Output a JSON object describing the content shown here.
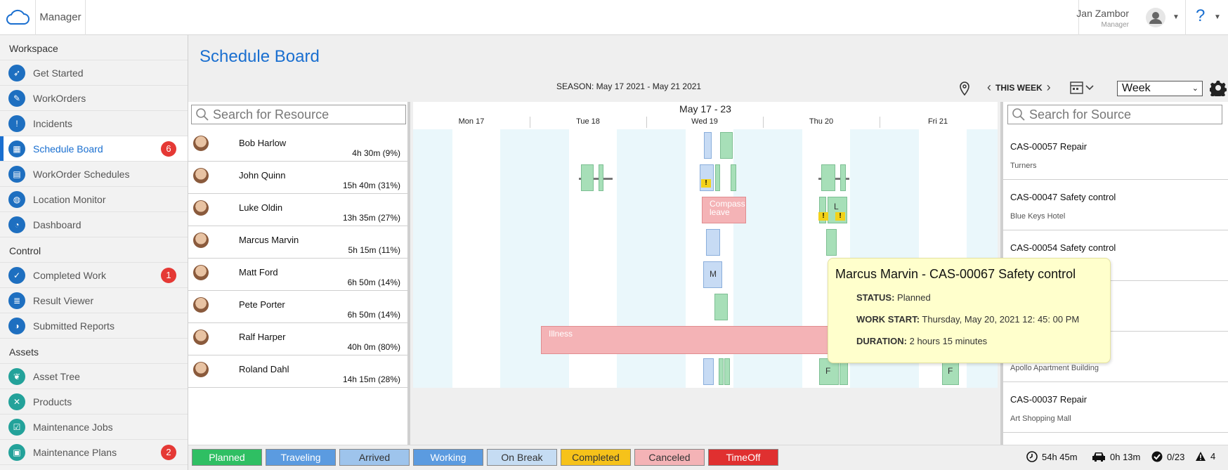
{
  "topbar": {
    "app_name": "Manager",
    "user_name": "Jan Zambor",
    "user_role": "Manager",
    "help": "?"
  },
  "sidebar": {
    "sections": [
      {
        "title": "Workspace",
        "items": [
          {
            "label": "Get Started",
            "icon": "rocket-icon"
          },
          {
            "label": "WorkOrders",
            "icon": "wrench-icon"
          },
          {
            "label": "Incidents",
            "icon": "warning-icon"
          },
          {
            "label": "Schedule Board",
            "icon": "schedule-icon",
            "badge": "6",
            "active": true
          },
          {
            "label": "WorkOrder Schedules",
            "icon": "calendar-icon"
          },
          {
            "label": "Location Monitor",
            "icon": "globe-icon"
          },
          {
            "label": "Dashboard",
            "icon": "gauge-icon"
          }
        ]
      },
      {
        "title": "Control",
        "items": [
          {
            "label": "Completed Work",
            "icon": "check-icon",
            "badge": "1"
          },
          {
            "label": "Result Viewer",
            "icon": "list-icon"
          },
          {
            "label": "Submitted Reports",
            "icon": "report-icon"
          }
        ]
      },
      {
        "title": "Assets",
        "items": [
          {
            "label": "Asset Tree",
            "icon": "tree-icon"
          },
          {
            "label": "Products",
            "icon": "tools-icon"
          },
          {
            "label": "Maintenance Jobs",
            "icon": "job-icon"
          },
          {
            "label": "Maintenance Plans",
            "icon": "plan-icon",
            "badge": "2"
          }
        ]
      }
    ]
  },
  "board": {
    "title": "Schedule Board",
    "season": "SEASON: May 17 2021 - May 21 2021",
    "week_label": "THIS WEEK",
    "view": "Week",
    "resource_search_placeholder": "Search for Resource",
    "source_search_placeholder": "Search for Source",
    "range": "May 17 - 23",
    "days": [
      "Mon 17",
      "Tue 18",
      "Wed 19",
      "Thu 20",
      "Fri 21"
    ]
  },
  "resources": [
    {
      "name": "Bob Harlow",
      "hours": "4h 30m (9%)"
    },
    {
      "name": "John Quinn",
      "hours": "15h 40m (31%)"
    },
    {
      "name": "Luke Oldin",
      "hours": "13h 35m (27%)"
    },
    {
      "name": "Marcus Marvin",
      "hours": "5h 15m (11%)"
    },
    {
      "name": "Matt Ford",
      "hours": "6h 50m (14%)"
    },
    {
      "name": "Pete Porter",
      "hours": "6h 50m (14%)"
    },
    {
      "name": "Ralf Harper",
      "hours": "40h 0m (80%)"
    },
    {
      "name": "Roland Dahl",
      "hours": "14h 15m (28%)"
    }
  ],
  "block_labels": {
    "compass_leave": "Compass leave",
    "illness": "Illness",
    "m": "M",
    "l": "L",
    "f": "F"
  },
  "sources": [
    {
      "title": "CAS-00057 Repair",
      "sub": "Turners"
    },
    {
      "title": "CAS-00047 Safety control",
      "sub": "Blue Keys Hotel"
    },
    {
      "title": "CAS-00054 Safety control",
      "sub": ""
    },
    {
      "title": "",
      "sub": ""
    },
    {
      "title": "",
      "sub": "Apollo Apartment Building"
    },
    {
      "title": "CAS-00037 Repair",
      "sub": "Art Shopping Mall"
    }
  ],
  "tooltip": {
    "title": "Marcus Marvin - CAS-00067 Safety control",
    "status_label": "STATUS:",
    "status": "Planned",
    "start_label": "WORK START:",
    "start": "Thursday, May 20, 2021 12: 45: 00 PM",
    "duration_label": "DURATION:",
    "duration": "2 hours 15 minutes"
  },
  "legend": [
    {
      "label": "Planned",
      "color": "#2fbf63",
      "text": "#ffffff"
    },
    {
      "label": "Traveling",
      "color": "#5b9be0",
      "text": "#ffffff"
    },
    {
      "label": "Arrived",
      "color": "#9ec4ec",
      "text": "#333333"
    },
    {
      "label": "Working",
      "color": "#5b9be0",
      "text": "#ffffff"
    },
    {
      "label": "On Break",
      "color": "#c5dcf3",
      "text": "#333333"
    },
    {
      "label": "Completed",
      "color": "#f6c21a",
      "text": "#333333"
    },
    {
      "label": "Canceled",
      "color": "#f4b3b6",
      "text": "#333333"
    },
    {
      "label": "TimeOff",
      "color": "#e03030",
      "text": "#ffffff"
    }
  ],
  "stats": {
    "work_time": "54h 45m",
    "travel_time": "0h 13m",
    "done": "0/23",
    "alerts": "4"
  }
}
